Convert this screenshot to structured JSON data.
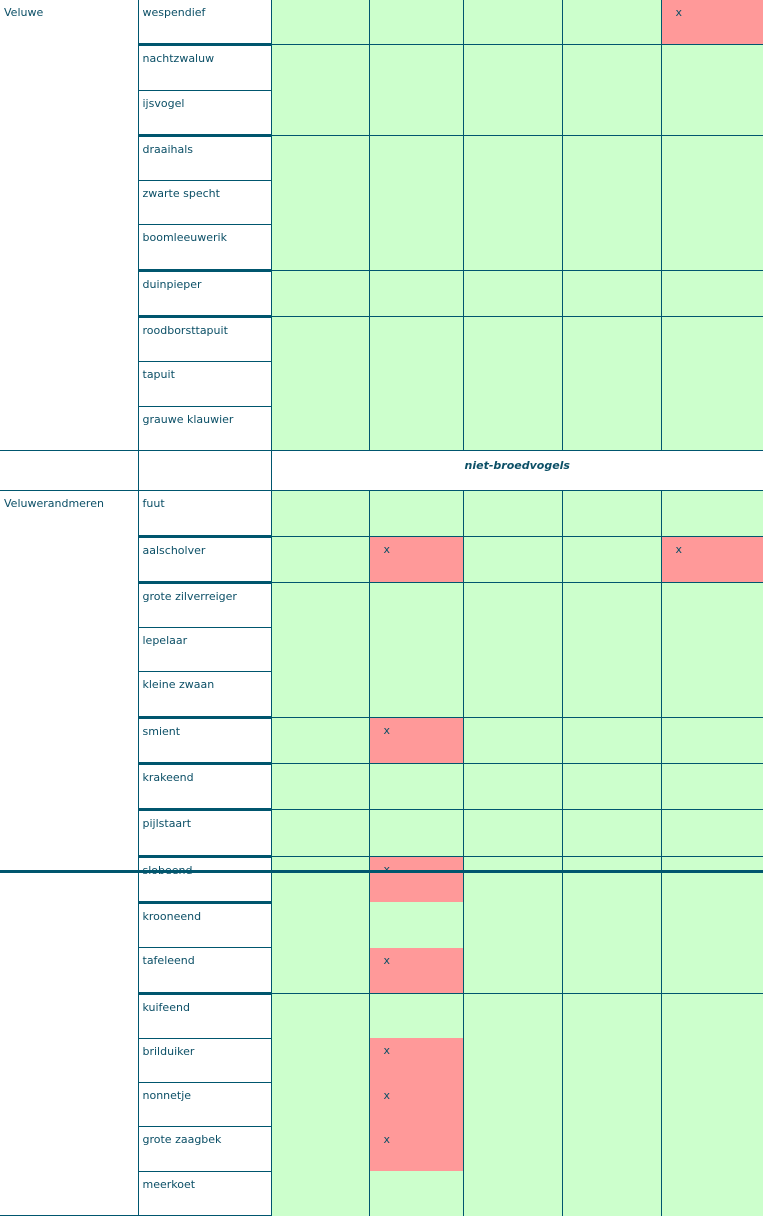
{
  "colors": {
    "ok": "#ccffcc",
    "flag": "#ff9999",
    "line": "#00566e"
  },
  "section_label": "niet-broedvogels",
  "groups": [
    {
      "region": "Veluwe",
      "rows": [
        {
          "species": "wespendief",
          "marks": [
            "",
            "",
            "",
            "",
            "x"
          ]
        },
        {
          "species": "nachtzwaluw",
          "marks": [
            "",
            "",
            "",
            "",
            ""
          ]
        },
        {
          "species": "ijsvogel",
          "marks": [
            "",
            "",
            "",
            "",
            ""
          ]
        },
        {
          "species": "draaihals",
          "marks": [
            "",
            "",
            "",
            "",
            ""
          ]
        },
        {
          "species": "zwarte specht",
          "marks": [
            "",
            "",
            "",
            "",
            ""
          ]
        },
        {
          "species": "boomleeuwerik",
          "marks": [
            "",
            "",
            "",
            "",
            ""
          ]
        },
        {
          "species": "duinpieper",
          "marks": [
            "",
            "",
            "",
            "",
            ""
          ]
        },
        {
          "species": "roodborsttapuit",
          "marks": [
            "",
            "",
            "",
            "",
            ""
          ]
        },
        {
          "species": "tapuit",
          "marks": [
            "",
            "",
            "",
            "",
            ""
          ]
        },
        {
          "species": "grauwe klauwier",
          "marks": [
            "",
            "",
            "",
            "",
            ""
          ]
        }
      ]
    },
    {
      "region": "Veluwerandmeren",
      "rows": [
        {
          "species": "fuut",
          "marks": [
            "",
            "",
            "",
            "",
            ""
          ]
        },
        {
          "species": "aalscholver",
          "marks": [
            "",
            "x",
            "",
            "",
            "x"
          ]
        },
        {
          "species": "grote zilverreiger",
          "marks": [
            "",
            "",
            "",
            "",
            ""
          ]
        },
        {
          "species": "lepelaar",
          "marks": [
            "",
            "",
            "",
            "",
            ""
          ]
        },
        {
          "species": "kleine zwaan",
          "marks": [
            "",
            "",
            "",
            "",
            ""
          ]
        },
        {
          "species": "smient",
          "marks": [
            "",
            "x",
            "",
            "",
            ""
          ]
        },
        {
          "species": "krakeend",
          "marks": [
            "",
            "",
            "",
            "",
            ""
          ]
        },
        {
          "species": "pijlstaart",
          "marks": [
            "",
            "",
            "",
            "",
            ""
          ]
        },
        {
          "species": "slobeend",
          "marks": [
            "",
            "x",
            "",
            "",
            ""
          ]
        },
        {
          "species": "krooneend",
          "marks": [
            "",
            "",
            "",
            "",
            ""
          ]
        },
        {
          "species": "tafeleend",
          "marks": [
            "",
            "x",
            "",
            "",
            ""
          ]
        },
        {
          "species": "kuifeend",
          "marks": [
            "",
            "",
            "",
            "",
            ""
          ]
        },
        {
          "species": "brilduiker",
          "marks": [
            "",
            "x",
            "",
            "",
            ""
          ]
        },
        {
          "species": "nonnetje",
          "marks": [
            "",
            "x",
            "",
            "",
            ""
          ]
        },
        {
          "species": "grote zaagbek",
          "marks": [
            "",
            "x",
            "",
            "",
            ""
          ]
        },
        {
          "species": "meerkoet",
          "marks": [
            "",
            "",
            "",
            "",
            ""
          ]
        }
      ]
    }
  ]
}
